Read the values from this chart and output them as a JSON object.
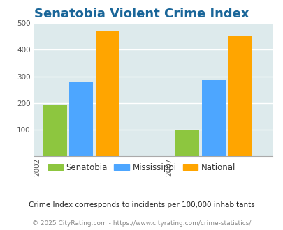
{
  "title": "Senatobia Violent Crime Index",
  "title_color": "#1a6699",
  "title_fontsize": 13,
  "years": [
    "2002",
    "2007"
  ],
  "series": {
    "Senatobia": [
      193,
      100
    ],
    "Mississippi": [
      280,
      287
    ],
    "National": [
      469,
      453
    ]
  },
  "colors": {
    "Senatobia": "#8DC63F",
    "Mississippi": "#4DA6FF",
    "National": "#FFA500"
  },
  "ylim": [
    0,
    500
  ],
  "yticks": [
    0,
    100,
    200,
    300,
    400,
    500
  ],
  "chart_bg": "#ddeaec",
  "grid_color": "#ffffff",
  "footnote1": "Crime Index corresponds to incidents per 100,000 inhabitants",
  "footnote2": "© 2025 CityRating.com - https://www.cityrating.com/crime-statistics/",
  "footnote1_color": "#222222",
  "footnote2_color": "#888888",
  "bar_width": 0.18,
  "legend_labels": [
    "Senatobia",
    "Mississippi",
    "National"
  ]
}
